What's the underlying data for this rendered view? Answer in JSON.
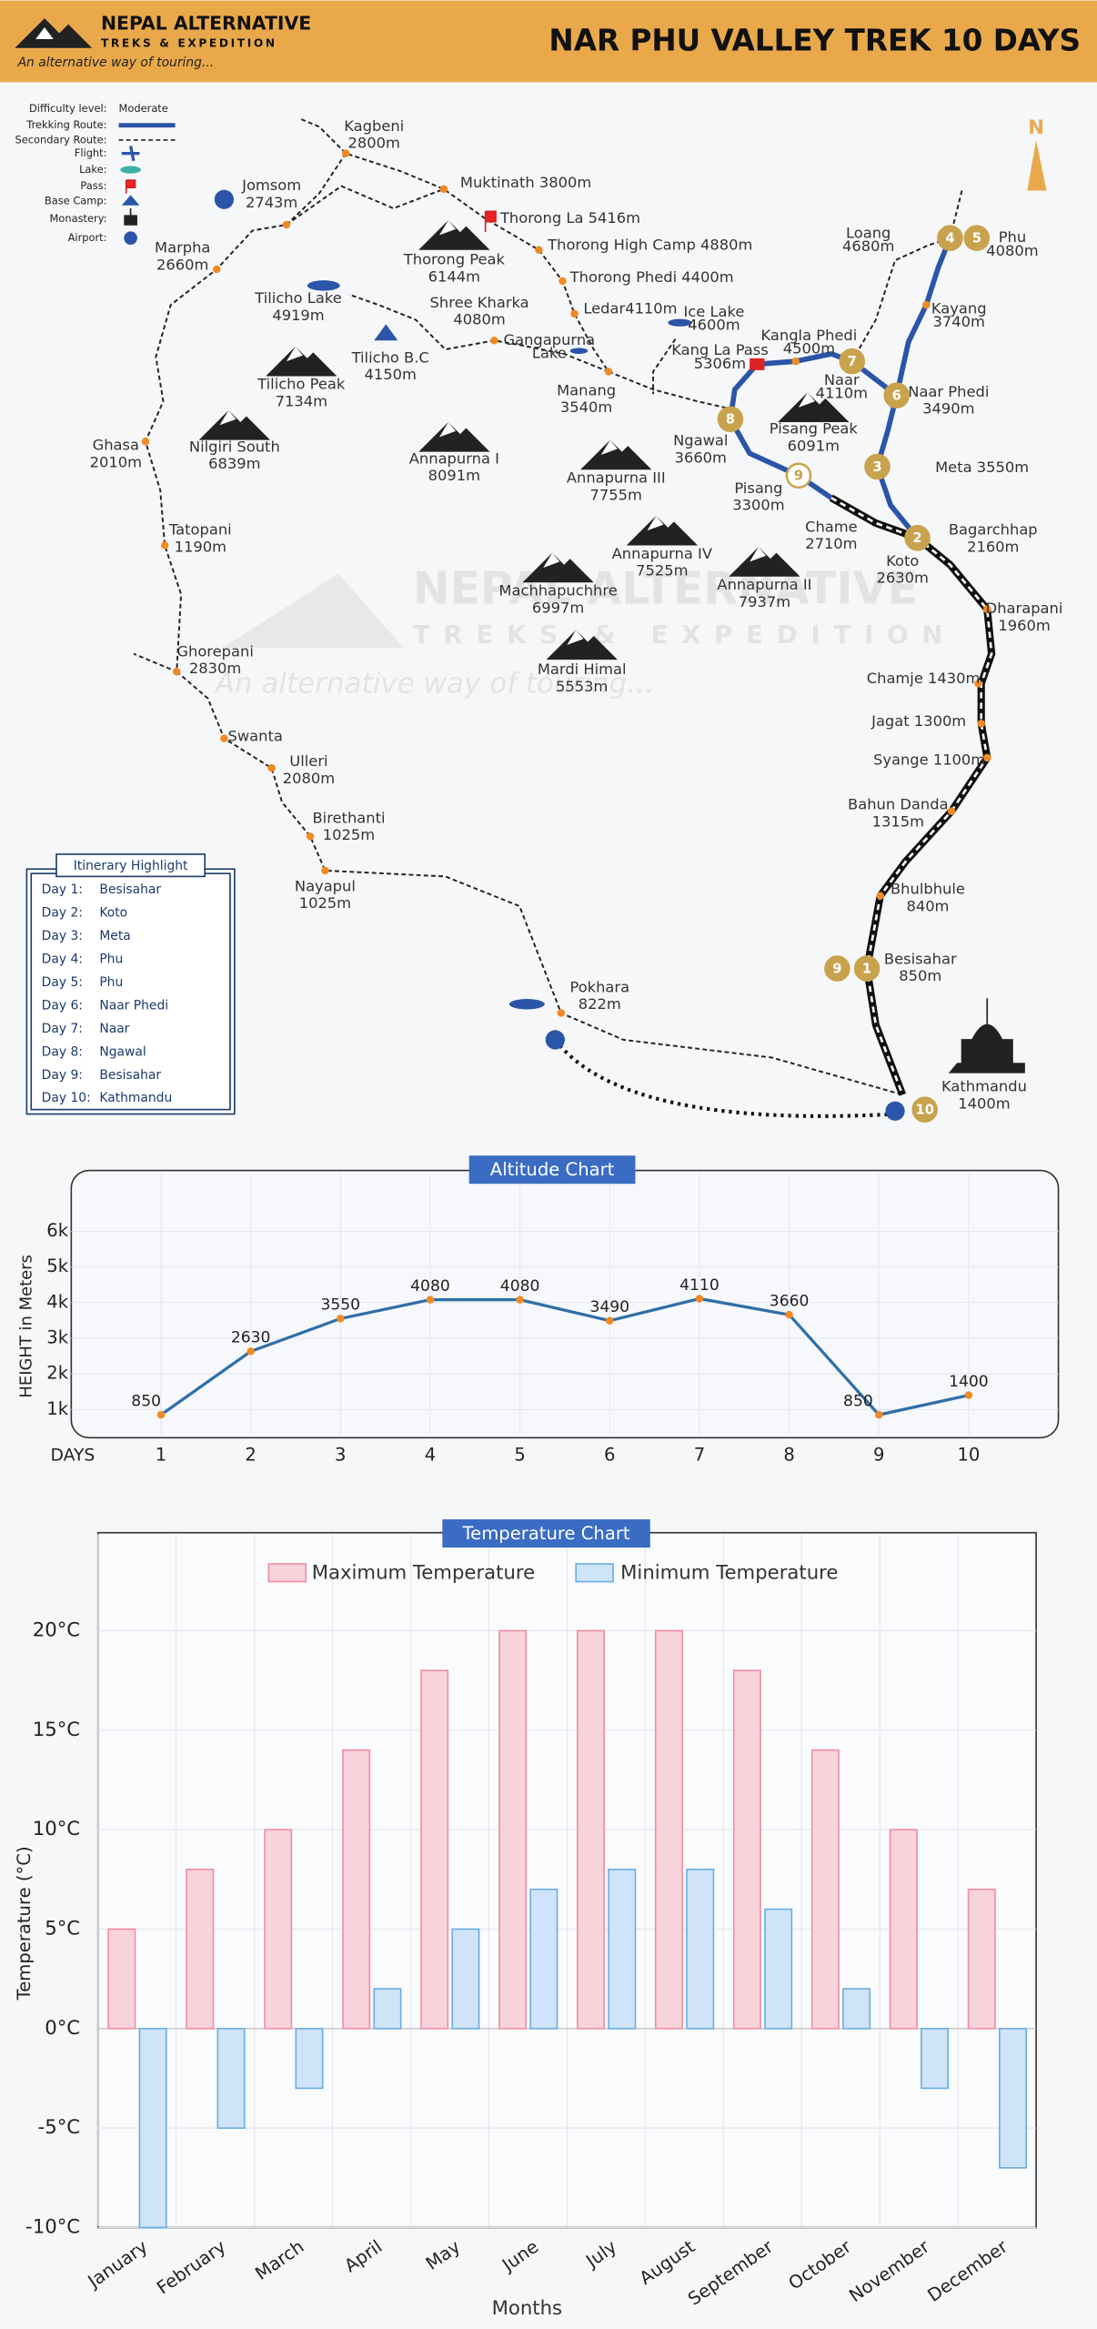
{
  "header": {
    "brand": "NEPAL ALTERNATIVE",
    "brand_sub": "TREKS & EXPEDITION",
    "tagline": "An alternative way of touring...",
    "title": "NAR PHU VALLEY TREK  10 DAYS"
  },
  "legend": {
    "difficulty_label": "Difficulty level:",
    "difficulty": "Moderate",
    "items": [
      "Trekking Route:",
      "Secondary Route:",
      "Flight:",
      "Lake:",
      "Pass:",
      "Base Camp:",
      "Monastery:",
      "Airport:"
    ]
  },
  "compass": "N",
  "watermark": {
    "brand": "NEPAL ALTERNATIVE",
    "sub": "TREKS & EXPEDITION",
    "tagline": "An alternative way of touring..."
  },
  "map": {
    "places": [
      {
        "name": "Kagbeni",
        "elev": "2800m"
      },
      {
        "name": "Jomsom",
        "elev": "2743m"
      },
      {
        "name": "Muktinath 3800m"
      },
      {
        "name": "Thorong La 5416m"
      },
      {
        "name": "Thorong High Camp 4880m"
      },
      {
        "name": "Thorong Phedi 4400m"
      },
      {
        "name": "Ledar4110m"
      },
      {
        "name": "Marpha",
        "elev": "2660m"
      },
      {
        "name": "Thorong Peak",
        "elev": "6144m"
      },
      {
        "name": "Tilicho Lake",
        "elev": "4919m"
      },
      {
        "name": "Shree Kharka",
        "elev": "4080m"
      },
      {
        "name": "Gangapurna",
        "elev": "Lake"
      },
      {
        "name": "Tilicho B.C",
        "elev": "4150m"
      },
      {
        "name": "Manang",
        "elev": "3540m"
      },
      {
        "name": "Tilicho Peak",
        "elev": "7134m"
      },
      {
        "name": "Ghasa",
        "elev": "2010m"
      },
      {
        "name": "Nilgiri South",
        "elev": "6839m"
      },
      {
        "name": "Annapurna I",
        "elev": "8091m"
      },
      {
        "name": "Annapurna III",
        "elev": "7755m"
      },
      {
        "name": "Tatopani",
        "elev": "1190m"
      },
      {
        "name": "Annapurna IV",
        "elev": "7525m"
      },
      {
        "name": "Machhapuchhre",
        "elev": "6997m"
      },
      {
        "name": "Annapurna II",
        "elev": "7937m"
      },
      {
        "name": "Mardi Himal",
        "elev": "5553m"
      },
      {
        "name": "Ghorepani",
        "elev": "2830m"
      },
      {
        "name": "Swanta"
      },
      {
        "name": "Ulleri",
        "elev": "2080m"
      },
      {
        "name": "Birethanti",
        "elev": "1025m"
      },
      {
        "name": "Nayapul",
        "elev": "1025m"
      },
      {
        "name": "Pokhara",
        "elev": "822m"
      },
      {
        "name": "Ice Lake",
        "elev": "4600m"
      },
      {
        "name": "Kang La Pass",
        "elev": "5306m"
      },
      {
        "name": "Kangla Phedi",
        "elev": "4500m"
      },
      {
        "name": "Loang",
        "elev": "4680m"
      },
      {
        "name": "Phu",
        "elev": "4080m"
      },
      {
        "name": "Kayang",
        "elev": "3740m"
      },
      {
        "name": "Naar",
        "elev": "4110m"
      },
      {
        "name": "Naar Phedi",
        "elev": "3490m"
      },
      {
        "name": "Ngawal",
        "elev": "3660m"
      },
      {
        "name": "Pisang Peak",
        "elev": "6091m"
      },
      {
        "name": "Meta 3550m"
      },
      {
        "name": "Pisang",
        "elev": "3300m"
      },
      {
        "name": "Chame",
        "elev": "2710m"
      },
      {
        "name": "Bagarchhap",
        "elev": "2160m"
      },
      {
        "name": "Koto",
        "elev": "2630m"
      },
      {
        "name": "Dharapani",
        "elev": "1960m"
      },
      {
        "name": "Chamje 1430m"
      },
      {
        "name": "Jagat 1300m"
      },
      {
        "name": "Syange 1100m"
      },
      {
        "name": "Bahun Danda",
        "elev": "1315m"
      },
      {
        "name": "Bhulbhule",
        "elev": "840m"
      },
      {
        "name": "Besisahar",
        "elev": "850m"
      },
      {
        "name": "Kathmandu",
        "elev": "1400m"
      }
    ],
    "markers": [
      "1",
      "2",
      "3",
      "4",
      "5",
      "6",
      "7",
      "8",
      "9",
      "9",
      "10"
    ]
  },
  "itinerary": {
    "title": "Itinerary Highlight",
    "days": [
      [
        "Day 1:",
        "Besisahar"
      ],
      [
        "Day 2:",
        "Koto"
      ],
      [
        "Day 3:",
        "Meta"
      ],
      [
        "Day 4:",
        "Phu"
      ],
      [
        "Day 5:",
        "Phu"
      ],
      [
        "Day 6:",
        "Naar Phedi"
      ],
      [
        "Day 7:",
        "Naar"
      ],
      [
        "Day 8:",
        "Ngawal"
      ],
      [
        "Day 9:",
        "Besisahar"
      ],
      [
        "Day 10:",
        "Kathmandu"
      ]
    ]
  },
  "chart_data": [
    {
      "type": "line",
      "title": "Altitude Chart",
      "xlabel": "DAYS",
      "ylabel": "HEIGHT in Meters",
      "x": [
        1,
        2,
        3,
        4,
        5,
        6,
        7,
        8,
        9,
        10
      ],
      "values": [
        850,
        2630,
        3550,
        4080,
        4080,
        3490,
        4110,
        3660,
        850,
        1400
      ],
      "color": "#2f6fa8",
      "point_color": "#f08a24",
      "xlim": [
        0,
        11
      ],
      "xticks": [
        1,
        2,
        3,
        4,
        5,
        6,
        7,
        8,
        9,
        10
      ],
      "ylim": [
        0,
        7500
      ],
      "yticks": [
        {
          "value": 1000,
          "label": "1k"
        },
        {
          "value": 2000,
          "label": "2k"
        },
        {
          "value": 3000,
          "label": "3k"
        },
        {
          "value": 4000,
          "label": "4k"
        },
        {
          "value": 5000,
          "label": "5k"
        },
        {
          "value": 6000,
          "label": "6k"
        }
      ],
      "grid": true
    },
    {
      "type": "bar",
      "title": "Temperature Chart",
      "xlabel": "Months",
      "ylabel": "Temperature (°C)",
      "categories": [
        "January",
        "February",
        "March",
        "April",
        "May",
        "June",
        "July",
        "August",
        "September",
        "October",
        "November",
        "December"
      ],
      "series": [
        {
          "name": "Maximum Temperature",
          "color": "#f9d3dc",
          "stroke": "#ef8ea2",
          "values": [
            5,
            8,
            10,
            14,
            18,
            20,
            20,
            20,
            18,
            14,
            10,
            7
          ]
        },
        {
          "name": "Minimum Temperature",
          "color": "#cfe4f8",
          "stroke": "#6aaee2",
          "values": [
            -10,
            -5,
            -3,
            2,
            5,
            7,
            8,
            8,
            6,
            2,
            -3,
            -7
          ]
        }
      ],
      "ylim": [
        -10,
        25
      ],
      "yticks": [
        {
          "value": -10,
          "label": "-10°C"
        },
        {
          "value": -5,
          "label": "-5°C"
        },
        {
          "value": 0,
          "label": "0°C"
        },
        {
          "value": 5,
          "label": "5°C"
        },
        {
          "value": 10,
          "label": "10°C"
        },
        {
          "value": 15,
          "label": "15°C"
        },
        {
          "value": 20,
          "label": "20°C"
        }
      ],
      "grid": true,
      "legend": "top"
    }
  ]
}
